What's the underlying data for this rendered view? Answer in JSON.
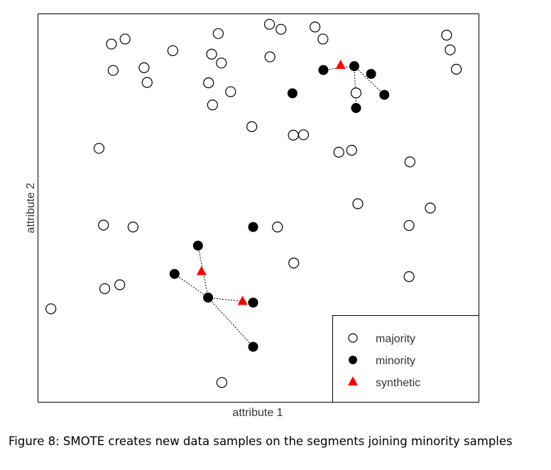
{
  "chart_data": {
    "type": "scatter",
    "xlabel": "attribute 1",
    "ylabel": "attribute 2",
    "xlim": [
      0,
      100
    ],
    "ylim": [
      0,
      100
    ],
    "legend_position": "bottom-right",
    "series": [
      {
        "name": "majority",
        "marker": "open-circle",
        "color": "#000000",
        "points": [
          [
            3.0,
            24.0
          ],
          [
            15.2,
            29.2
          ],
          [
            18.6,
            30.2
          ],
          [
            14.9,
            45.6
          ],
          [
            21.6,
            45.1
          ],
          [
            13.9,
            65.4
          ],
          [
            16.7,
            92.3
          ],
          [
            19.8,
            93.6
          ],
          [
            17.1,
            85.5
          ],
          [
            24.1,
            86.2
          ],
          [
            24.8,
            82.4
          ],
          [
            30.6,
            90.6
          ],
          [
            39.4,
            89.7
          ],
          [
            41.6,
            87.4
          ],
          [
            40.9,
            95.0
          ],
          [
            38.7,
            82.3
          ],
          [
            43.7,
            80.0
          ],
          [
            39.6,
            76.6
          ],
          [
            48.5,
            71.0
          ],
          [
            52.5,
            97.4
          ],
          [
            55.1,
            96.1
          ],
          [
            52.6,
            89.0
          ],
          [
            62.8,
            96.7
          ],
          [
            64.6,
            93.6
          ],
          [
            57.9,
            68.8
          ],
          [
            60.2,
            68.9
          ],
          [
            68.2,
            64.4
          ],
          [
            71.1,
            64.9
          ],
          [
            72.1,
            79.7
          ],
          [
            72.5,
            51.1
          ],
          [
            84.3,
            61.9
          ],
          [
            84.1,
            45.5
          ],
          [
            88.9,
            50.0
          ],
          [
            54.3,
            45.1
          ],
          [
            58.0,
            35.8
          ],
          [
            84.1,
            32.3
          ],
          [
            41.7,
            5.0
          ],
          [
            92.6,
            94.6
          ],
          [
            93.4,
            90.8
          ],
          [
            94.8,
            85.8
          ]
        ]
      },
      {
        "name": "minority",
        "marker": "filled-circle",
        "color": "#000000",
        "points": [
          [
            36.3,
            40.3
          ],
          [
            31.0,
            33.0
          ],
          [
            38.6,
            26.9
          ],
          [
            48.8,
            25.6
          ],
          [
            48.8,
            14.2
          ],
          [
            48.8,
            45.1
          ],
          [
            57.7,
            79.6
          ],
          [
            64.7,
            85.6
          ],
          [
            71.7,
            86.6
          ],
          [
            75.5,
            84.6
          ],
          [
            72.1,
            75.8
          ],
          [
            78.5,
            79.2
          ]
        ]
      },
      {
        "name": "synthetic",
        "marker": "triangle",
        "color": "#ff0000",
        "points": [
          [
            37.1,
            33.8
          ],
          [
            46.4,
            26.1
          ],
          [
            68.6,
            87.0
          ]
        ]
      }
    ],
    "segments": [
      [
        [
          36.3,
          40.3
        ],
        [
          38.6,
          26.9
        ]
      ],
      [
        [
          31.0,
          33.0
        ],
        [
          38.6,
          26.9
        ]
      ],
      [
        [
          38.6,
          26.9
        ],
        [
          48.8,
          25.6
        ]
      ],
      [
        [
          38.6,
          26.9
        ],
        [
          48.8,
          14.2
        ]
      ],
      [
        [
          64.7,
          85.6
        ],
        [
          71.7,
          86.6
        ]
      ],
      [
        [
          71.7,
          86.6
        ],
        [
          72.1,
          75.8
        ]
      ],
      [
        [
          71.7,
          86.6
        ],
        [
          78.5,
          79.2
        ]
      ]
    ]
  },
  "legend": {
    "items": [
      {
        "label": "majority"
      },
      {
        "label": "minority"
      },
      {
        "label": "synthetic"
      }
    ]
  },
  "caption": "Figure 8: SMOTE creates new data samples on the segments joining minority samples",
  "colors": {
    "background": "#ffffff",
    "axis": "#000000",
    "minority": "#000000",
    "synthetic": "#ff0000",
    "segment": "#000000"
  }
}
